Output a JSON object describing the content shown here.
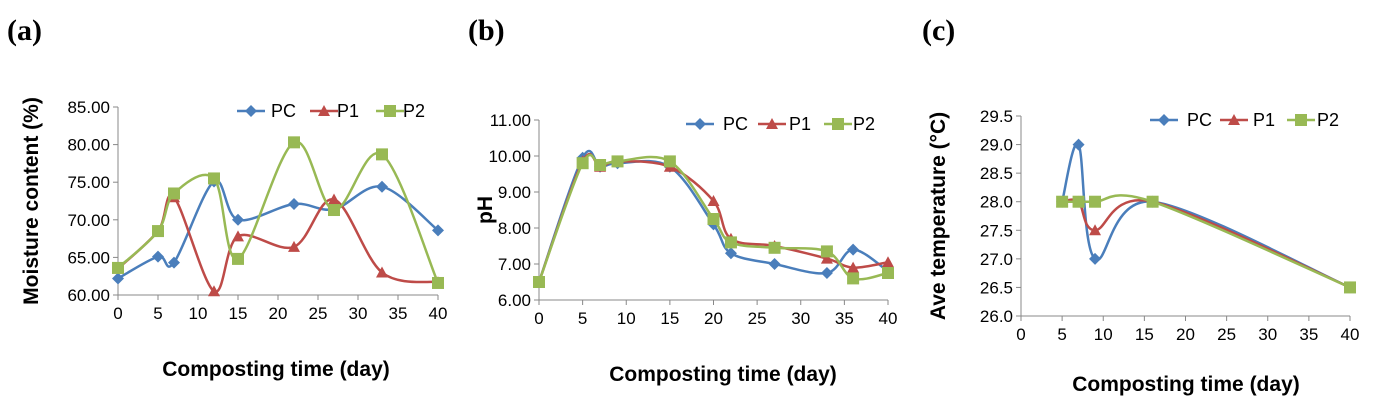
{
  "chart_data": [
    {
      "panel": "(a)",
      "type": "line",
      "xlabel": "Composting time (day)",
      "ylabel": "Moisture content (%)",
      "xlim": [
        0,
        40
      ],
      "ylim": [
        60,
        85
      ],
      "xticks": [
        "0",
        "5",
        "10",
        "15",
        "20",
        "25",
        "30",
        "35",
        "40"
      ],
      "yticks": [
        "60.00",
        "65.00",
        "70.00",
        "75.00",
        "80.00",
        "85.00"
      ],
      "legend": "top-right",
      "series": [
        {
          "name": "PC",
          "x": [
            0,
            5,
            7,
            12,
            15,
            22,
            27,
            33,
            40
          ],
          "y": [
            62.2,
            65.1,
            64.3,
            75.1,
            70.0,
            72.1,
            71.4,
            74.4,
            68.6
          ]
        },
        {
          "name": "P1",
          "x": [
            0,
            5,
            7,
            12,
            15,
            22,
            27,
            33,
            40
          ],
          "y": [
            63.5,
            68.5,
            73.0,
            60.5,
            67.8,
            66.4,
            72.7,
            63.0,
            61.7
          ]
        },
        {
          "name": "P2",
          "x": [
            0,
            5,
            7,
            12,
            15,
            22,
            27,
            33,
            40
          ],
          "y": [
            63.6,
            68.5,
            73.5,
            75.5,
            64.8,
            80.3,
            71.3,
            78.7,
            61.6
          ]
        }
      ]
    },
    {
      "panel": "(b)",
      "type": "line",
      "xlabel": "Composting time (day)",
      "ylabel": "pH",
      "xlim": [
        0,
        40
      ],
      "ylim": [
        6,
        11
      ],
      "xticks": [
        "0",
        "5",
        "10",
        "15",
        "20",
        "25",
        "30",
        "35",
        "40"
      ],
      "yticks": [
        "6.00",
        "7.00",
        "8.00",
        "9.00",
        "10.00",
        "11.00"
      ],
      "legend": "top-right",
      "series": [
        {
          "name": "PC",
          "x": [
            0,
            5,
            7,
            9,
            15,
            20,
            22,
            27,
            33,
            36,
            40
          ],
          "y": [
            6.5,
            9.95,
            9.7,
            9.8,
            9.7,
            8.1,
            7.3,
            7.0,
            6.75,
            7.4,
            6.8
          ]
        },
        {
          "name": "P1",
          "x": [
            0,
            5,
            7,
            9,
            15,
            20,
            22,
            27,
            33,
            36,
            40
          ],
          "y": [
            6.5,
            9.85,
            9.7,
            9.85,
            9.7,
            8.75,
            7.7,
            7.5,
            7.15,
            6.9,
            7.05
          ]
        },
        {
          "name": "P2",
          "x": [
            0,
            5,
            7,
            9,
            15,
            20,
            22,
            27,
            33,
            36,
            40
          ],
          "y": [
            6.5,
            9.8,
            9.75,
            9.85,
            9.85,
            8.25,
            7.6,
            7.45,
            7.35,
            6.6,
            6.75
          ]
        }
      ]
    },
    {
      "panel": "(c)",
      "type": "line",
      "xlabel": "Composting time (day)",
      "ylabel": "Ave temperature (°C)",
      "xlim": [
        0,
        40
      ],
      "ylim": [
        26.0,
        29.5
      ],
      "xticks": [
        "0",
        "5",
        "10",
        "15",
        "20",
        "25",
        "30",
        "35",
        "40"
      ],
      "yticks": [
        "26.0",
        "26.5",
        "27.0",
        "27.5",
        "28.0",
        "28.5",
        "29.0",
        "29.5"
      ],
      "legend": "top-right",
      "series": [
        {
          "name": "PC",
          "x": [
            5,
            7,
            9,
            16,
            40
          ],
          "y": [
            28.0,
            29.0,
            27.0,
            28.0,
            26.5
          ]
        },
        {
          "name": "P1",
          "x": [
            5,
            7,
            9,
            16,
            40
          ],
          "y": [
            28.0,
            28.0,
            27.5,
            28.0,
            26.5
          ]
        },
        {
          "name": "P2",
          "x": [
            5,
            7,
            9,
            16,
            40
          ],
          "y": [
            28.0,
            28.0,
            28.0,
            28.0,
            26.5
          ]
        }
      ]
    }
  ],
  "styles": {
    "PC": {
      "color": "#4a7ebb",
      "marker": "diamond"
    },
    "P1": {
      "color": "#be4b48",
      "marker": "triangle"
    },
    "P2": {
      "color": "#98b954",
      "marker": "square"
    }
  }
}
